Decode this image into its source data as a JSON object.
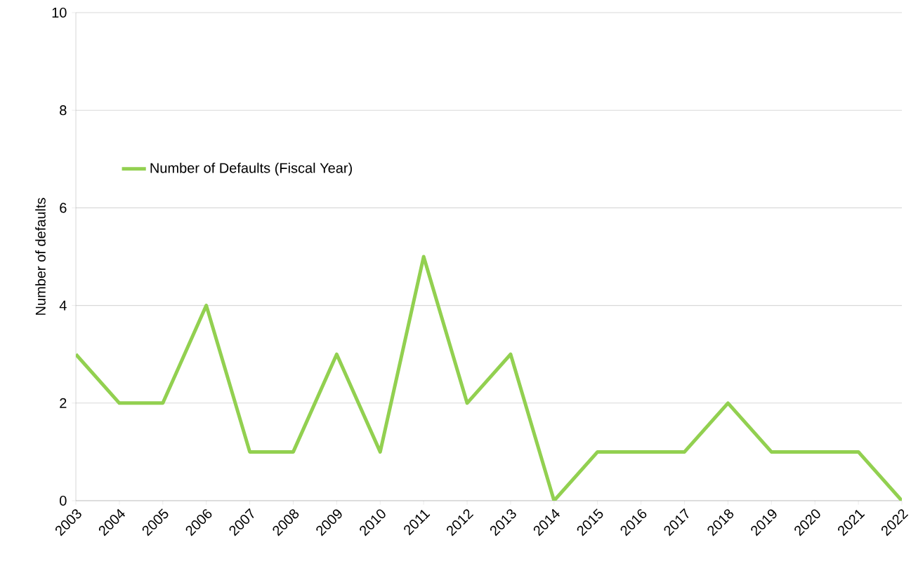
{
  "chart_data": {
    "type": "line",
    "ylabel": "Number of defaults",
    "categories": [
      "2003",
      "2004",
      "2005",
      "2006",
      "2007",
      "2008",
      "2009",
      "2010",
      "2011",
      "2012",
      "2013",
      "2014",
      "2015",
      "2016",
      "2017",
      "2018",
      "2019",
      "2020",
      "2021",
      "2022"
    ],
    "series": [
      {
        "name": "Number of Defaults (Fiscal Year)",
        "color": "#92d050",
        "values": [
          3,
          2,
          2,
          4,
          1,
          1,
          3,
          1,
          5,
          2,
          3,
          0,
          1,
          1,
          1,
          2,
          1,
          1,
          1,
          0
        ]
      }
    ],
    "ylim": [
      0,
      10
    ],
    "yticks": [
      0,
      2,
      4,
      6,
      8,
      10
    ],
    "grid": "y",
    "legend": "left",
    "marker": "none",
    "line_style": "solid"
  }
}
